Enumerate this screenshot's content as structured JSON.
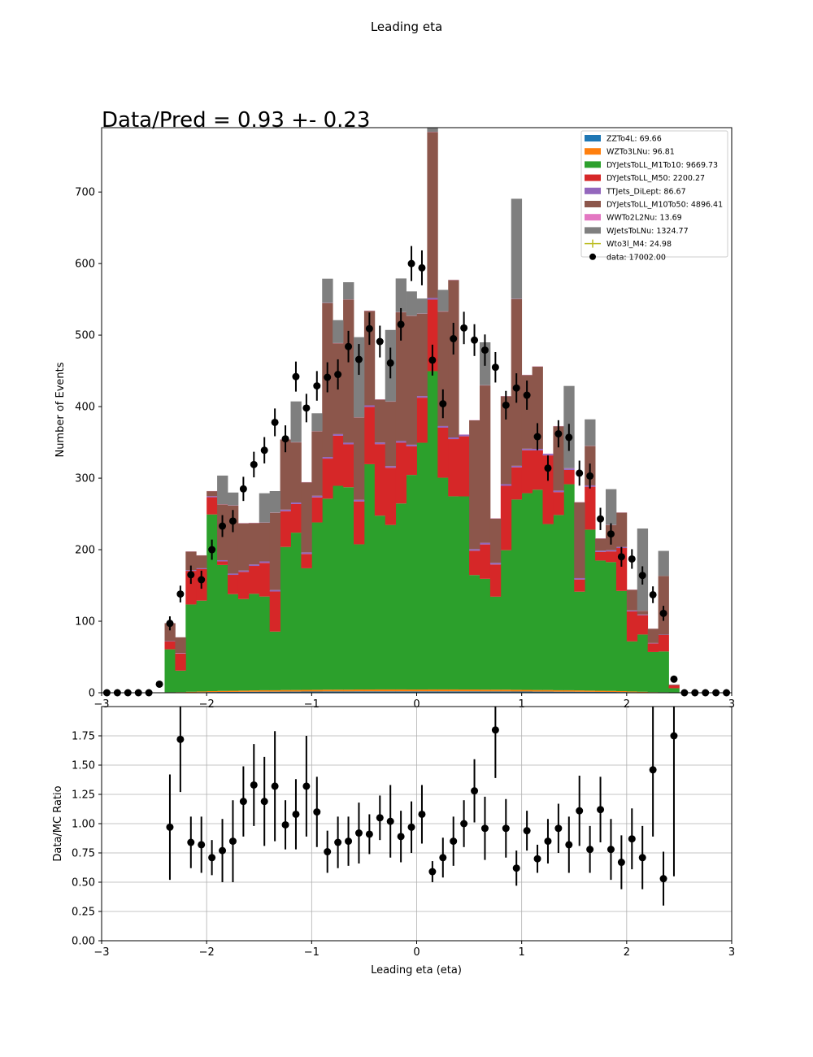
{
  "figure": {
    "suptitle": "Leading eta",
    "ratio_annotation": "Data/Pred = 0.93 +- 0.23"
  },
  "chart_data": [
    {
      "type": "bar",
      "stacked": true,
      "title": "Data/Pred = 0.93 +- 0.23",
      "xlabel": "",
      "ylabel": "Number of Events",
      "xlim": [
        -3,
        3
      ],
      "ylim": [
        0,
        790
      ],
      "xticks": [
        -3,
        -2,
        -1,
        0,
        1,
        2,
        3
      ],
      "yticks": [
        0,
        100,
        200,
        300,
        400,
        500,
        600,
        700
      ],
      "grid": false,
      "legend_position": "top-right",
      "bin_edges": [
        -3.0,
        -2.9,
        -2.8,
        -2.7,
        -2.6,
        -2.5,
        -2.4,
        -2.3,
        -2.2,
        -2.1,
        -2.0,
        -1.9,
        -1.8,
        -1.7,
        -1.6,
        -1.5,
        -1.4,
        -1.3,
        -1.2,
        -1.1,
        -1.0,
        -0.9,
        -0.8,
        -0.7,
        -0.6,
        -0.5,
        -0.4,
        -0.3,
        -0.2,
        -0.1,
        0.0,
        0.1,
        0.2,
        0.3,
        0.4,
        0.5,
        0.6,
        0.7,
        0.8,
        0.9,
        1.0,
        1.1,
        1.2,
        1.3,
        1.4,
        1.5,
        1.6,
        1.7,
        1.8,
        1.9,
        2.0,
        2.1,
        2.2,
        2.3,
        2.4,
        2.5,
        2.6,
        2.7,
        2.8,
        2.9,
        3.0
      ],
      "series": [
        {
          "name": "ZZTo4L: 69.66",
          "color": "#1f77b4",
          "values": [
            0,
            0,
            0,
            0,
            0,
            0,
            0.3,
            0.4,
            0.6,
            0.8,
            1.0,
            1.1,
            1.2,
            1.3,
            1.4,
            1.5,
            1.5,
            1.6,
            1.6,
            1.7,
            1.7,
            1.8,
            1.8,
            1.8,
            1.9,
            1.9,
            1.9,
            1.9,
            1.9,
            1.9,
            1.9,
            1.9,
            1.9,
            1.9,
            1.9,
            1.9,
            1.8,
            1.8,
            1.8,
            1.7,
            1.7,
            1.6,
            1.6,
            1.5,
            1.5,
            1.4,
            1.3,
            1.2,
            1.1,
            1.0,
            0.8,
            0.6,
            0.4,
            0.3,
            0.1,
            0,
            0,
            0,
            0,
            0
          ]
        },
        {
          "name": "WZTo3LNu: 96.81",
          "color": "#ff7f0e",
          "values": [
            0,
            0,
            0,
            0,
            0,
            0,
            0.4,
            0.5,
            0.8,
            1.0,
            1.3,
            1.5,
            1.6,
            1.7,
            1.9,
            2.0,
            2.0,
            2.2,
            2.2,
            2.3,
            2.4,
            2.5,
            2.5,
            2.5,
            2.6,
            2.6,
            2.7,
            2.7,
            2.7,
            2.6,
            2.6,
            2.7,
            2.7,
            2.7,
            2.6,
            2.6,
            2.5,
            2.5,
            2.5,
            2.4,
            2.3,
            2.2,
            2.2,
            2.0,
            2.0,
            1.9,
            1.7,
            1.6,
            1.5,
            1.3,
            1.0,
            0.8,
            0.5,
            0.4,
            0.2,
            0,
            0,
            0,
            0,
            0
          ]
        },
        {
          "name": "DYJetsToLL_M1To10: 9669.73",
          "color": "#2ca02c",
          "values": [
            0,
            0,
            0,
            0,
            0,
            0,
            60,
            30,
            122,
            127,
            247,
            176,
            135,
            128,
            135,
            131,
            82,
            200,
            220,
            170,
            234,
            267,
            285,
            283,
            203,
            315,
            243,
            230,
            260,
            300,
            345,
            445,
            296,
            270,
            270,
            160,
            155,
            130,
            195,
            266,
            275,
            280,
            232,
            245,
            288,
            138,
            225,
            182,
            180,
            140,
            70,
            80,
            56,
            57,
            6,
            0,
            0,
            0,
            0,
            0
          ]
        },
        {
          "name": "DYJetsToLL_M50: 2200.27",
          "color": "#d62728",
          "values": [
            0,
            0,
            0,
            0,
            0,
            0,
            11,
            24,
            47,
            44,
            24,
            5,
            27,
            38,
            39,
            47,
            56,
            50,
            40,
            20,
            35,
            56,
            70,
            60,
            60,
            80,
            100,
            80,
            85,
            40,
            63,
            100,
            70,
            80,
            84,
            34,
            48,
            45,
            90,
            45,
            60,
            55,
            96,
            32,
            20,
            17,
            60,
            12,
            15,
            60,
            42,
            27,
            12,
            23,
            4,
            0,
            0,
            0,
            0,
            0
          ]
        },
        {
          "name": "TTJets_DiLept: 86.67",
          "color": "#9467bd",
          "values": [
            0,
            0,
            0,
            0,
            0,
            0,
            0.5,
            0.6,
            1.0,
            1.2,
            1.5,
            1.7,
            1.8,
            1.9,
            2.0,
            2.1,
            2.1,
            2.2,
            2.2,
            2.2,
            2.3,
            2.3,
            2.3,
            2.3,
            2.3,
            2.3,
            2.3,
            2.3,
            2.3,
            2.3,
            2.3,
            2.3,
            2.3,
            2.3,
            2.3,
            2.3,
            2.3,
            2.3,
            2.3,
            2.2,
            2.2,
            2.2,
            2.2,
            2.1,
            2.1,
            2.0,
            1.9,
            1.8,
            1.7,
            1.5,
            1.2,
            1.0,
            0.6,
            0.5,
            0.2,
            0,
            0,
            0,
            0,
            0
          ]
        },
        {
          "name": "DYJetsToLL_M10To50: 4896.41",
          "color": "#8c564b",
          "values": [
            0,
            0,
            0,
            0,
            0,
            0,
            25,
            22,
            26,
            18,
            7,
            78,
            95,
            66,
            58,
            54,
            108,
            98,
            84,
            98,
            90,
            215,
            127,
            200,
            115,
            132,
            60,
            90,
            180,
            180,
            115,
            232,
            160,
            220,
            0,
            180,
            220,
            62,
            123,
            233,
            103,
            115,
            0,
            90,
            0,
            106,
            55,
            17,
            35,
            48,
            29,
            5,
            20,
            82,
            1,
            0,
            0,
            0,
            0,
            0
          ]
        },
        {
          "name": "WWTo2L2Nu: 13.69",
          "color": "#e377c2",
          "values": [
            0,
            0,
            0,
            0,
            0,
            0,
            0.1,
            0.1,
            0.2,
            0.2,
            0.2,
            0.3,
            0.3,
            0.3,
            0.3,
            0.3,
            0.3,
            0.3,
            0.3,
            0.3,
            0.3,
            0.3,
            0.3,
            0.3,
            0.3,
            0.3,
            0.3,
            0.3,
            0.3,
            0.3,
            0.3,
            0.3,
            0.3,
            0.3,
            0.3,
            0.3,
            0.3,
            0.3,
            0.3,
            0.3,
            0.3,
            0.3,
            0.3,
            0.3,
            0.3,
            0.3,
            0.3,
            0.3,
            0.3,
            0.2,
            0.2,
            0.2,
            0.1,
            0.1,
            0,
            0,
            0,
            0,
            0,
            0
          ]
        },
        {
          "name": "WJetsToLNu: 1324.77",
          "color": "#7f7f7f",
          "values": [
            0,
            0,
            0,
            0,
            0,
            0,
            0,
            0,
            0,
            0,
            0,
            40,
            18,
            0,
            0,
            41,
            30,
            0,
            57,
            0,
            25,
            34,
            32,
            24,
            112,
            0,
            0,
            100,
            47,
            34,
            21,
            30,
            30,
            0,
            0,
            0,
            60,
            0,
            0,
            140,
            0,
            0,
            0,
            0,
            115,
            0,
            37,
            0,
            50,
            0,
            0,
            115,
            0,
            35,
            0,
            0,
            0,
            0,
            0,
            0
          ]
        },
        {
          "name": "Wto3l_M4: 24.98",
          "color": "#bcbd22",
          "values": [
            0,
            0,
            0,
            0,
            0,
            0,
            0,
            0,
            0,
            0,
            0,
            0,
            0,
            0,
            0,
            0,
            0,
            0,
            0,
            0,
            0,
            0,
            0,
            0,
            0,
            0,
            0,
            0,
            0,
            0,
            0,
            0,
            0,
            0,
            0,
            0,
            0,
            0,
            0,
            0,
            0,
            0,
            0,
            0,
            0,
            0,
            0,
            0,
            0,
            0,
            0,
            0,
            0,
            0,
            0,
            0,
            0,
            0,
            0,
            0
          ]
        }
      ],
      "data": {
        "name": "data: 17002.00",
        "x": [
          -2.95,
          -2.85,
          -2.75,
          -2.65,
          -2.55,
          -2.45,
          -2.35,
          -2.25,
          -2.15,
          -2.05,
          -1.95,
          -1.85,
          -1.75,
          -1.65,
          -1.55,
          -1.45,
          -1.35,
          -1.25,
          -1.15,
          -1.05,
          -0.95,
          -0.85,
          -0.75,
          -0.65,
          -0.55,
          -0.45,
          -0.35,
          -0.25,
          -0.15,
          -0.05,
          0.05,
          0.15,
          0.25,
          0.35,
          0.45,
          0.55,
          0.65,
          0.75,
          0.85,
          0.95,
          1.05,
          1.15,
          1.25,
          1.35,
          1.45,
          1.55,
          1.65,
          1.75,
          1.85,
          1.95,
          2.05,
          2.15,
          2.25,
          2.35,
          2.45,
          2.55,
          2.65,
          2.75,
          2.85,
          2.95
        ],
        "y": [
          0,
          0,
          0,
          0,
          0,
          12,
          97,
          138,
          165,
          158,
          200,
          233,
          240,
          285,
          319,
          339,
          378,
          355,
          442,
          398,
          429,
          441,
          445,
          484,
          466,
          509,
          491,
          461,
          515,
          600,
          594,
          465,
          404,
          495,
          510,
          493,
          479,
          455,
          402,
          426,
          416,
          358,
          314,
          362,
          357,
          307,
          303,
          243,
          222,
          190,
          187,
          164,
          137,
          111,
          19,
          0,
          0,
          0,
          0,
          0
        ],
        "yerr": [
          0,
          0,
          0,
          0,
          0,
          3.5,
          9.8,
          11.7,
          12.8,
          12.6,
          14.1,
          15.3,
          15.5,
          16.9,
          17.9,
          18.4,
          19.4,
          18.8,
          21.0,
          19.9,
          20.7,
          21.0,
          21.1,
          22.0,
          21.6,
          22.6,
          22.2,
          21.5,
          22.7,
          24.5,
          24.4,
          21.6,
          20.1,
          22.2,
          22.6,
          22.2,
          21.9,
          21.3,
          20.0,
          20.6,
          20.4,
          18.9,
          17.7,
          19.0,
          18.9,
          17.5,
          17.4,
          15.6,
          14.9,
          13.8,
          13.7,
          12.8,
          11.7,
          10.5,
          4.4,
          0,
          0,
          0,
          0,
          0
        ]
      }
    },
    {
      "type": "scatter",
      "xlabel": "Leading eta (eta)",
      "ylabel": "Data/MC Ratio",
      "xlim": [
        -3,
        3
      ],
      "ylim": [
        0,
        2.0
      ],
      "xticks": [
        -3,
        -2,
        -1,
        0,
        1,
        2,
        3
      ],
      "yticks": [
        0.0,
        0.25,
        0.5,
        0.75,
        1.0,
        1.25,
        1.5,
        1.75
      ],
      "ytick_labels": [
        "0.00",
        "0.25",
        "0.50",
        "0.75",
        "1.00",
        "1.25",
        "1.50",
        "1.75"
      ],
      "xtick_labels": [
        "−3",
        "−2",
        "−1",
        "0",
        "1",
        "2",
        "3"
      ],
      "grid": true,
      "points": {
        "x": [
          -2.35,
          -2.25,
          -2.15,
          -2.05,
          -1.95,
          -1.85,
          -1.75,
          -1.65,
          -1.55,
          -1.45,
          -1.35,
          -1.25,
          -1.15,
          -1.05,
          -0.95,
          -0.85,
          -0.75,
          -0.65,
          -0.55,
          -0.45,
          -0.35,
          -0.25,
          -0.15,
          -0.05,
          0.05,
          0.15,
          0.25,
          0.35,
          0.45,
          0.55,
          0.65,
          0.75,
          0.85,
          0.95,
          1.05,
          1.15,
          1.25,
          1.35,
          1.45,
          1.55,
          1.65,
          1.75,
          1.85,
          1.95,
          2.05,
          2.15,
          2.25,
          2.35,
          2.45
        ],
        "y": [
          0.97,
          1.72,
          0.84,
          0.82,
          0.71,
          0.77,
          0.85,
          1.19,
          1.33,
          1.19,
          1.32,
          0.99,
          1.08,
          1.32,
          1.1,
          0.76,
          0.84,
          0.85,
          0.92,
          0.91,
          1.05,
          1.02,
          0.89,
          0.97,
          1.08,
          0.59,
          0.71,
          0.85,
          1.0,
          1.28,
          0.96,
          1.8,
          0.96,
          0.62,
          0.94,
          0.7,
          0.85,
          0.96,
          0.82,
          1.11,
          0.78,
          1.12,
          0.78,
          0.67,
          0.87,
          0.71,
          1.46,
          0.53,
          1.75
        ],
        "yerr": [
          0.45,
          0.45,
          0.22,
          0.24,
          0.15,
          0.27,
          0.35,
          0.3,
          0.35,
          0.38,
          0.47,
          0.21,
          0.3,
          0.43,
          0.3,
          0.18,
          0.22,
          0.21,
          0.26,
          0.17,
          0.19,
          0.31,
          0.22,
          0.22,
          0.25,
          0.09,
          0.17,
          0.21,
          0.2,
          0.27,
          0.27,
          0.41,
          0.25,
          0.15,
          0.17,
          0.12,
          0.19,
          0.21,
          0.24,
          0.3,
          0.2,
          0.28,
          0.26,
          0.23,
          0.26,
          0.27,
          0.57,
          0.23,
          1.2
        ]
      }
    }
  ]
}
